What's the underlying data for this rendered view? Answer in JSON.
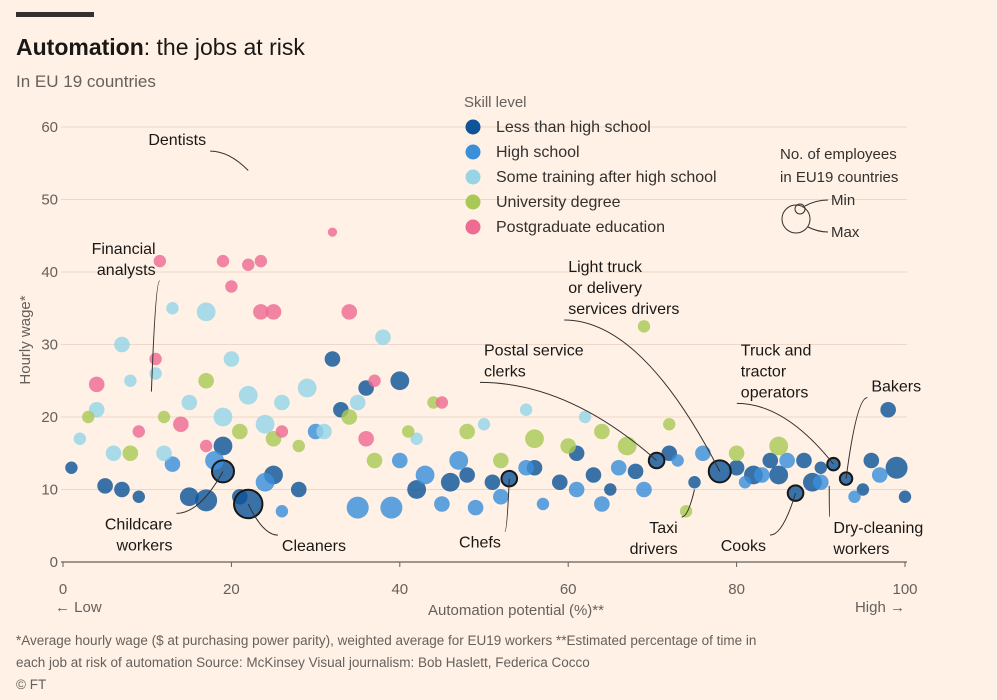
{
  "header": {
    "title_bold": "Automation",
    "title_rest": ": the jobs at risk",
    "subtitle": "In EU 19 countries"
  },
  "legend": {
    "title": "Skill level",
    "items": [
      {
        "label": "Less than high school",
        "color": "#0f5499"
      },
      {
        "label": "High school",
        "color": "#3b8fd9"
      },
      {
        "label": "Some training after high school",
        "color": "#96d4e6"
      },
      {
        "label": "University degree",
        "color": "#a9c956"
      },
      {
        "label": "Postgraduate education",
        "color": "#ee6b92"
      }
    ],
    "size_title_1": "No. of employees",
    "size_title_2": "in EU19 countries",
    "size_min": "Min",
    "size_max": "Max"
  },
  "footnote": {
    "line1": "*Average hourly wage ($ at purchasing power parity), weighted average for EU19 workers   **Estimated percentage of time in",
    "line2": "each job at risk of automation   Source: McKinsey   Visual journalism: Bob Haslett, Federica Cocco",
    "line3": "© FT"
  },
  "chart_data": {
    "type": "scatter",
    "title": "Automation: the jobs at risk",
    "subtitle": "In EU 19 countries",
    "xlabel": "Automation potential (%)**",
    "ylabel": "Hourly wage*",
    "xlim": [
      0,
      100
    ],
    "ylim": [
      0,
      60
    ],
    "xticks": [
      "0",
      "20",
      "40",
      "60",
      "80",
      "100"
    ],
    "yticks": [
      "0",
      "10",
      "20",
      "30",
      "40",
      "50",
      "60"
    ],
    "x_low_label": "← Low",
    "x_high_label": "High →",
    "grid": "horizontal",
    "legend_position": "top-center",
    "annotations": [
      {
        "label": [
          "Dentists"
        ],
        "x": 22,
        "y": 54,
        "lx": 17,
        "ly": 57.5,
        "anchor": "end"
      },
      {
        "label": [
          "Financial",
          "analysts"
        ],
        "x": 10.5,
        "y": 23.5,
        "lx": 11,
        "ly": 42.5,
        "anchor": "end"
      },
      {
        "label": [
          "Childcare",
          "workers"
        ],
        "x": 19,
        "y": 12.5,
        "lx": 13,
        "ly": 4.5,
        "anchor": "end"
      },
      {
        "label": [
          "Cleaners"
        ],
        "x": 22,
        "y": 8,
        "lx": 26,
        "ly": 1.5,
        "anchor": "start"
      },
      {
        "label": [
          "Chefs"
        ],
        "x": 53,
        "y": 11.5,
        "lx": 52,
        "ly": 2,
        "anchor": "end"
      },
      {
        "label": [
          "Postal service",
          "clerks"
        ],
        "x": 70.5,
        "y": 14,
        "lx": 50,
        "ly": 28.5,
        "anchor": "start"
      },
      {
        "label": [
          "Light truck",
          "or delivery",
          "services drivers"
        ],
        "x": 78,
        "y": 12.5,
        "lx": 60,
        "ly": 40,
        "anchor": "start"
      },
      {
        "label": [
          "Taxi",
          "drivers"
        ],
        "x": 75,
        "y": 10,
        "lx": 73,
        "ly": 4,
        "anchor": "end"
      },
      {
        "label": [
          "Cooks"
        ],
        "x": 87,
        "y": 9.5,
        "lx": 83.5,
        "ly": 1.5,
        "anchor": "end"
      },
      {
        "label": [
          "Truck and",
          "tractor",
          "operators"
        ],
        "x": 91.5,
        "y": 13.5,
        "lx": 80.5,
        "ly": 28.5,
        "anchor": "start"
      },
      {
        "label": [
          "Bakers"
        ],
        "x": 93,
        "y": 11.5,
        "lx": 96,
        "ly": 23.5,
        "anchor": "start"
      },
      {
        "label": [
          "Dry-cleaning",
          "workers"
        ],
        "x": 91,
        "y": 10.5,
        "lx": 91.5,
        "ly": 4,
        "anchor": "start"
      }
    ],
    "series": [
      {
        "name": "Less than high school",
        "color": "#0f5499",
        "points": [
          {
            "x": 1,
            "y": 13,
            "s": 2
          },
          {
            "x": 5,
            "y": 10.5,
            "s": 3
          },
          {
            "x": 7,
            "y": 10,
            "s": 3
          },
          {
            "x": 9,
            "y": 9,
            "s": 2
          },
          {
            "x": 15,
            "y": 9,
            "s": 4
          },
          {
            "x": 17,
            "y": 8.5,
            "s": 5
          },
          {
            "x": 19,
            "y": 12.5,
            "s": 5,
            "highlight": true
          },
          {
            "x": 19,
            "y": 16,
            "s": 4
          },
          {
            "x": 21,
            "y": 9,
            "s": 3
          },
          {
            "x": 22,
            "y": 8,
            "s": 7,
            "highlight": true
          },
          {
            "x": 25,
            "y": 12,
            "s": 4
          },
          {
            "x": 28,
            "y": 10,
            "s": 3
          },
          {
            "x": 32,
            "y": 28,
            "s": 3
          },
          {
            "x": 33,
            "y": 21,
            "s": 3
          },
          {
            "x": 36,
            "y": 24,
            "s": 3
          },
          {
            "x": 40,
            "y": 25,
            "s": 4
          },
          {
            "x": 42,
            "y": 10,
            "s": 4
          },
          {
            "x": 46,
            "y": 11,
            "s": 4
          },
          {
            "x": 48,
            "y": 12,
            "s": 3
          },
          {
            "x": 51,
            "y": 11,
            "s": 3
          },
          {
            "x": 53,
            "y": 11.5,
            "s": 3,
            "highlight": true
          },
          {
            "x": 56,
            "y": 13,
            "s": 3
          },
          {
            "x": 59,
            "y": 11,
            "s": 3
          },
          {
            "x": 61,
            "y": 15,
            "s": 3
          },
          {
            "x": 63,
            "y": 12,
            "s": 3
          },
          {
            "x": 65,
            "y": 10,
            "s": 2
          },
          {
            "x": 68,
            "y": 12.5,
            "s": 3
          },
          {
            "x": 70.5,
            "y": 14,
            "s": 3,
            "highlight": true
          },
          {
            "x": 72,
            "y": 15,
            "s": 3
          },
          {
            "x": 75,
            "y": 11,
            "s": 2
          },
          {
            "x": 78,
            "y": 12.5,
            "s": 5,
            "highlight": true
          },
          {
            "x": 80,
            "y": 13,
            "s": 3
          },
          {
            "x": 82,
            "y": 12,
            "s": 4
          },
          {
            "x": 84,
            "y": 14,
            "s": 3
          },
          {
            "x": 85,
            "y": 12,
            "s": 4
          },
          {
            "x": 87,
            "y": 9.5,
            "s": 3,
            "highlight": true
          },
          {
            "x": 88,
            "y": 14,
            "s": 3
          },
          {
            "x": 89,
            "y": 11,
            "s": 4
          },
          {
            "x": 90,
            "y": 13,
            "s": 2
          },
          {
            "x": 91.5,
            "y": 13.5,
            "s": 2,
            "highlight": true
          },
          {
            "x": 93,
            "y": 11.5,
            "s": 2,
            "highlight": true
          },
          {
            "x": 95,
            "y": 10,
            "s": 2
          },
          {
            "x": 96,
            "y": 14,
            "s": 3
          },
          {
            "x": 98,
            "y": 21,
            "s": 3
          },
          {
            "x": 99,
            "y": 13,
            "s": 5
          },
          {
            "x": 100,
            "y": 9,
            "s": 2
          }
        ]
      },
      {
        "name": "High school",
        "color": "#3b8fd9",
        "points": [
          {
            "x": 13,
            "y": 13.5,
            "s": 3
          },
          {
            "x": 18,
            "y": 14,
            "s": 4
          },
          {
            "x": 24,
            "y": 11,
            "s": 4
          },
          {
            "x": 26,
            "y": 7,
            "s": 2
          },
          {
            "x": 30,
            "y": 18,
            "s": 3
          },
          {
            "x": 35,
            "y": 7.5,
            "s": 5
          },
          {
            "x": 39,
            "y": 7.5,
            "s": 5
          },
          {
            "x": 40,
            "y": 14,
            "s": 3
          },
          {
            "x": 43,
            "y": 12,
            "s": 4
          },
          {
            "x": 45,
            "y": 8,
            "s": 3
          },
          {
            "x": 47,
            "y": 14,
            "s": 4
          },
          {
            "x": 49,
            "y": 7.5,
            "s": 3
          },
          {
            "x": 52,
            "y": 9,
            "s": 3
          },
          {
            "x": 55,
            "y": 13,
            "s": 3
          },
          {
            "x": 57,
            "y": 8,
            "s": 2
          },
          {
            "x": 61,
            "y": 10,
            "s": 3
          },
          {
            "x": 64,
            "y": 8,
            "s": 3
          },
          {
            "x": 66,
            "y": 13,
            "s": 3
          },
          {
            "x": 69,
            "y": 10,
            "s": 3
          },
          {
            "x": 73,
            "y": 14,
            "s": 2
          },
          {
            "x": 76,
            "y": 15,
            "s": 3
          },
          {
            "x": 81,
            "y": 11,
            "s": 2
          },
          {
            "x": 83,
            "y": 12,
            "s": 3
          },
          {
            "x": 86,
            "y": 14,
            "s": 3
          },
          {
            "x": 90,
            "y": 11,
            "s": 3
          },
          {
            "x": 94,
            "y": 9,
            "s": 2
          },
          {
            "x": 97,
            "y": 12,
            "s": 3
          }
        ]
      },
      {
        "name": "Some training after high school",
        "color": "#96d4e6",
        "points": [
          {
            "x": 2,
            "y": 17,
            "s": 2
          },
          {
            "x": 4,
            "y": 21,
            "s": 3
          },
          {
            "x": 6,
            "y": 15,
            "s": 3
          },
          {
            "x": 7,
            "y": 30,
            "s": 3
          },
          {
            "x": 8,
            "y": 25,
            "s": 2
          },
          {
            "x": 11,
            "y": 26,
            "s": 2
          },
          {
            "x": 12,
            "y": 15,
            "s": 3
          },
          {
            "x": 13,
            "y": 35,
            "s": 2
          },
          {
            "x": 15,
            "y": 22,
            "s": 3
          },
          {
            "x": 17,
            "y": 34.5,
            "s": 4
          },
          {
            "x": 19,
            "y": 20,
            "s": 4
          },
          {
            "x": 20,
            "y": 28,
            "s": 3
          },
          {
            "x": 22,
            "y": 23,
            "s": 4
          },
          {
            "x": 24,
            "y": 19,
            "s": 4
          },
          {
            "x": 26,
            "y": 22,
            "s": 3
          },
          {
            "x": 29,
            "y": 24,
            "s": 4
          },
          {
            "x": 31,
            "y": 18,
            "s": 3
          },
          {
            "x": 35,
            "y": 22,
            "s": 3
          },
          {
            "x": 38,
            "y": 31,
            "s": 3
          },
          {
            "x": 42,
            "y": 17,
            "s": 2
          },
          {
            "x": 50,
            "y": 19,
            "s": 2
          },
          {
            "x": 55,
            "y": 21,
            "s": 2
          },
          {
            "x": 62,
            "y": 20,
            "s": 2
          }
        ]
      },
      {
        "name": "University degree",
        "color": "#a9c956",
        "points": [
          {
            "x": 3,
            "y": 20,
            "s": 2
          },
          {
            "x": 8,
            "y": 15,
            "s": 3
          },
          {
            "x": 12,
            "y": 20,
            "s": 2
          },
          {
            "x": 17,
            "y": 25,
            "s": 3
          },
          {
            "x": 21,
            "y": 18,
            "s": 3
          },
          {
            "x": 25,
            "y": 17,
            "s": 3
          },
          {
            "x": 28,
            "y": 16,
            "s": 2
          },
          {
            "x": 34,
            "y": 20,
            "s": 3
          },
          {
            "x": 37,
            "y": 14,
            "s": 3
          },
          {
            "x": 41,
            "y": 18,
            "s": 2
          },
          {
            "x": 44,
            "y": 22,
            "s": 2
          },
          {
            "x": 48,
            "y": 18,
            "s": 3
          },
          {
            "x": 52,
            "y": 14,
            "s": 3
          },
          {
            "x": 56,
            "y": 17,
            "s": 4
          },
          {
            "x": 60,
            "y": 16,
            "s": 3
          },
          {
            "x": 64,
            "y": 18,
            "s": 3
          },
          {
            "x": 67,
            "y": 16,
            "s": 4
          },
          {
            "x": 69,
            "y": 32.5,
            "s": 2
          },
          {
            "x": 72,
            "y": 19,
            "s": 2
          },
          {
            "x": 74,
            "y": 7,
            "s": 2
          },
          {
            "x": 80,
            "y": 15,
            "s": 3
          },
          {
            "x": 85,
            "y": 16,
            "s": 4
          }
        ]
      },
      {
        "name": "Postgraduate education",
        "color": "#ee6b92",
        "points": [
          {
            "x": 4,
            "y": 24.5,
            "s": 3
          },
          {
            "x": 9,
            "y": 18,
            "s": 2
          },
          {
            "x": 11,
            "y": 28,
            "s": 2
          },
          {
            "x": 11.5,
            "y": 41.5,
            "s": 2
          },
          {
            "x": 14,
            "y": 19,
            "s": 3
          },
          {
            "x": 17,
            "y": 16,
            "s": 2
          },
          {
            "x": 19,
            "y": 41.5,
            "s": 2
          },
          {
            "x": 20,
            "y": 38,
            "s": 2
          },
          {
            "x": 22,
            "y": 41,
            "s": 2
          },
          {
            "x": 23.5,
            "y": 41.5,
            "s": 2
          },
          {
            "x": 23.5,
            "y": 34.5,
            "s": 3
          },
          {
            "x": 25,
            "y": 34.5,
            "s": 3
          },
          {
            "x": 26,
            "y": 18,
            "s": 2
          },
          {
            "x": 32,
            "y": 45.5,
            "s": 1
          },
          {
            "x": 34,
            "y": 34.5,
            "s": 3
          },
          {
            "x": 36,
            "y": 17,
            "s": 3
          },
          {
            "x": 37,
            "y": 25,
            "s": 2
          },
          {
            "x": 45,
            "y": 22,
            "s": 2
          }
        ]
      }
    ]
  }
}
